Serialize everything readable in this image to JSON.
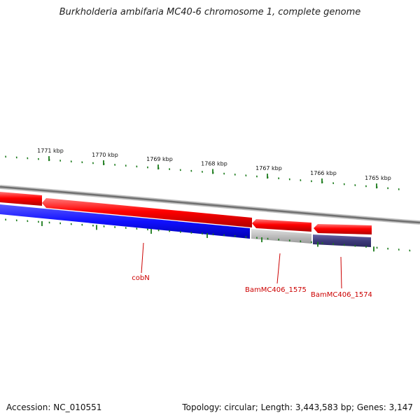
{
  "title": "Burkholderia ambifaria MC40-6 chromosome 1, complete genome",
  "footer": {
    "accession": "Accession: NC_010551",
    "topology": "Topology: circular; Length: 3,443,583 bp; Genes: 3,147"
  },
  "scale_labels": [
    "1771 kbp",
    "1770 kbp",
    "1769 kbp",
    "1768 kbp",
    "1767 kbp",
    "1766 kbp",
    "1765 kbp"
  ],
  "genes": [
    {
      "label": "cobN",
      "strand": "reverse",
      "color": "#1a1aff"
    },
    {
      "label": "BamMC406_1575",
      "strand": "reverse",
      "color": "#bdbdbd"
    },
    {
      "label": "BamMC406_1574",
      "strand": "reverse",
      "color": "#3d3a7a"
    }
  ],
  "colors": {
    "forward_track": "#ff0000",
    "backbone": "#808080",
    "ticks": "#1a7a1a",
    "labels": "#cc0000"
  }
}
